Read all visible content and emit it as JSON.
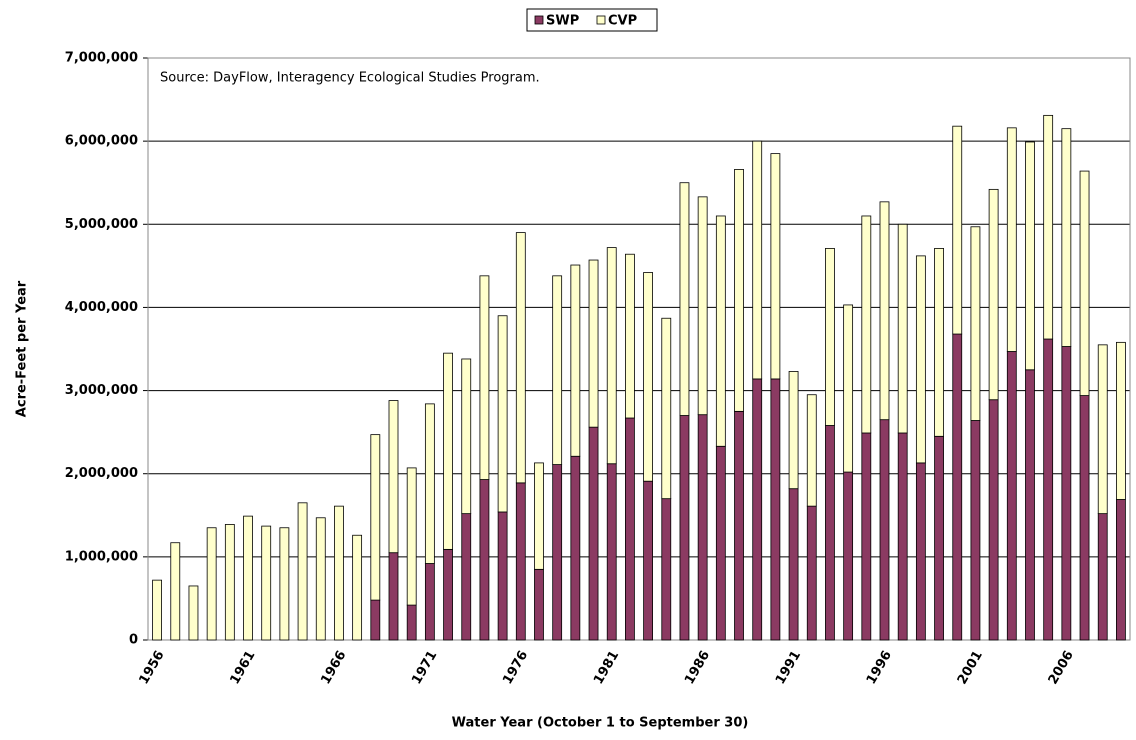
{
  "chart_data": {
    "type": "bar",
    "stacked": true,
    "annotation": "Source: DayFlow, Interagency Ecological Studies Program.",
    "x_label": "Water Year (October 1 to September 30)",
    "y_label": "Acre-Feet per Year",
    "categories": [
      "1956",
      null,
      null,
      null,
      null,
      "1961",
      null,
      null,
      null,
      null,
      "1966",
      null,
      null,
      null,
      null,
      "1971",
      null,
      null,
      null,
      null,
      "1976",
      null,
      null,
      null,
      null,
      "1981",
      null,
      null,
      null,
      null,
      "1986",
      null,
      null,
      null,
      null,
      "1991",
      null,
      null,
      null,
      null,
      "1996",
      null,
      null,
      null,
      null,
      "2001",
      null,
      null,
      null,
      null,
      "2006",
      null,
      null,
      null
    ],
    "series": [
      {
        "name": "SWP",
        "color": "#8b3a62",
        "values": [
          0,
          0,
          0,
          0,
          0,
          0,
          0,
          0,
          0,
          0,
          0,
          0,
          480000,
          1050000,
          420000,
          920000,
          1090000,
          1520000,
          1930000,
          1540000,
          1890000,
          850000,
          2110000,
          2210000,
          2560000,
          2120000,
          2670000,
          1910000,
          1700000,
          2700000,
          2710000,
          2330000,
          2750000,
          3140000,
          3140000,
          1820000,
          1610000,
          2580000,
          2020000,
          2490000,
          2650000,
          2490000,
          2130000,
          2450000,
          3680000,
          2640000,
          2890000,
          3470000,
          3250000,
          3620000,
          3530000,
          2940000,
          1520000,
          1690000
        ]
      },
      {
        "name": "CVP",
        "color": "#ffffcc",
        "values": [
          720000,
          1170000,
          650000,
          1350000,
          1390000,
          1490000,
          1370000,
          1350000,
          1650000,
          1470000,
          1610000,
          1260000,
          1990000,
          1830000,
          1650000,
          1920000,
          2360000,
          1860000,
          2450000,
          2360000,
          3010000,
          1280000,
          2270000,
          2300000,
          2010000,
          2600000,
          1970000,
          2510000,
          2170000,
          2800000,
          2620000,
          2770000,
          2910000,
          2860000,
          2710000,
          1410000,
          1340000,
          2130000,
          2010000,
          2610000,
          2620000,
          2510000,
          2490000,
          2260000,
          2500000,
          2330000,
          2530000,
          2690000,
          2740000,
          2690000,
          2620000,
          2700000,
          2030000,
          1890000
        ]
      }
    ],
    "ylim": [
      0,
      7000000
    ],
    "yticks": [
      0,
      {
        "value": 1000000,
        "label": "1,000,000"
      },
      {
        "value": 2000000,
        "label": "2,000,000"
      },
      {
        "value": 3000000,
        "label": "3,000,000"
      },
      {
        "value": 4000000,
        "label": "4,000,000"
      },
      {
        "value": 5000000,
        "label": "5,000,000"
      },
      {
        "value": 6000000,
        "label": "6,000,000"
      },
      {
        "value": 7000000,
        "label": "7,000,000"
      }
    ],
    "grid": true,
    "legend": "top"
  }
}
